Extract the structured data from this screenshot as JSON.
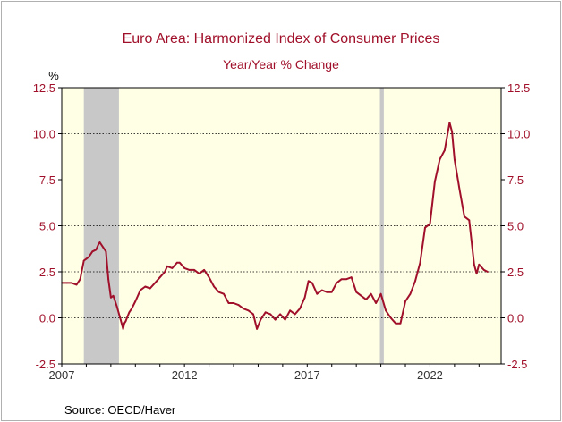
{
  "chart_data": {
    "type": "line",
    "title": "Euro Area: Harmonized Index of Consumer Prices",
    "subtitle": "Year/Year % Change",
    "unit_label": "%",
    "source": "Source:  OECD/Haver",
    "ylim": [
      -2.5,
      12.5
    ],
    "yticks": [
      "12.5",
      "10.0",
      "7.5",
      "5.0",
      "2.5",
      "0.0",
      "-2.5"
    ],
    "ytick_values": [
      12.5,
      10.0,
      7.5,
      5.0,
      2.5,
      0.0,
      -2.5
    ],
    "gridlines_at": [
      10.0,
      5.0,
      2.5
    ],
    "xlim": [
      2007.0,
      2024.9
    ],
    "xticks": [
      "2007",
      "2012",
      "2017",
      "2022"
    ],
    "xtick_values": [
      2007,
      2012,
      2017,
      2022
    ],
    "recessions": [
      [
        2007.9,
        2009.33
      ],
      [
        2019.96,
        2020.12
      ]
    ],
    "series": [
      {
        "name": "",
        "x": [
          2007.0,
          2007.2,
          2007.4,
          2007.6,
          2007.75,
          2007.9,
          2008.0,
          2008.1,
          2008.25,
          2008.4,
          2008.5,
          2008.55,
          2008.7,
          2008.8,
          2008.9,
          2009.0,
          2009.1,
          2009.25,
          2009.4,
          2009.5,
          2009.55,
          2009.6,
          2009.75,
          2009.85,
          2010.0,
          2010.2,
          2010.4,
          2010.6,
          2010.8,
          2011.0,
          2011.2,
          2011.3,
          2011.5,
          2011.7,
          2011.8,
          2012.0,
          2012.2,
          2012.4,
          2012.6,
          2012.8,
          2013.0,
          2013.2,
          2013.4,
          2013.6,
          2013.8,
          2014.0,
          2014.2,
          2014.4,
          2014.6,
          2014.8,
          2014.95,
          2015.1,
          2015.3,
          2015.5,
          2015.7,
          2015.9,
          2016.1,
          2016.3,
          2016.5,
          2016.7,
          2016.9,
          2017.05,
          2017.2,
          2017.4,
          2017.6,
          2017.8,
          2018.0,
          2018.2,
          2018.4,
          2018.6,
          2018.8,
          2019.0,
          2019.2,
          2019.4,
          2019.6,
          2019.8,
          2020.0,
          2020.2,
          2020.4,
          2020.6,
          2020.8,
          2021.0,
          2021.2,
          2021.4,
          2021.6,
          2021.8,
          2022.0,
          2022.2,
          2022.4,
          2022.6,
          2022.8,
          2022.9,
          2023.0,
          2023.2,
          2023.4,
          2023.6,
          2023.8,
          2023.9,
          2024.0,
          2024.2,
          2024.35
        ],
        "values": [
          1.9,
          1.9,
          1.9,
          1.8,
          2.1,
          3.1,
          3.2,
          3.3,
          3.6,
          3.7,
          4.0,
          4.1,
          3.8,
          3.6,
          2.1,
          1.1,
          1.2,
          0.6,
          -0.1,
          -0.6,
          -0.3,
          -0.2,
          0.3,
          0.5,
          0.9,
          1.5,
          1.7,
          1.6,
          1.9,
          2.2,
          2.5,
          2.8,
          2.7,
          3.0,
          3.0,
          2.7,
          2.6,
          2.6,
          2.4,
          2.6,
          2.2,
          1.7,
          1.4,
          1.3,
          0.8,
          0.8,
          0.7,
          0.5,
          0.4,
          0.2,
          -0.6,
          -0.1,
          0.3,
          0.2,
          -0.1,
          0.2,
          -0.1,
          0.4,
          0.2,
          0.5,
          1.1,
          2.0,
          1.9,
          1.3,
          1.5,
          1.4,
          1.4,
          1.9,
          2.1,
          2.1,
          2.2,
          1.4,
          1.2,
          1.0,
          1.3,
          0.8,
          1.3,
          0.4,
          0.0,
          -0.3,
          -0.3,
          0.9,
          1.3,
          2.0,
          3.0,
          4.9,
          5.1,
          7.4,
          8.6,
          9.1,
          10.6,
          10.1,
          8.6,
          7.0,
          5.5,
          5.3,
          2.9,
          2.4,
          2.9,
          2.6,
          2.5
        ]
      }
    ]
  }
}
